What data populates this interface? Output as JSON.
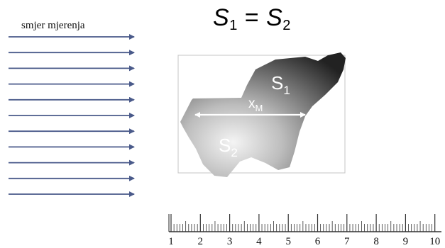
{
  "direction_label": "smjer mjerenja",
  "equation": {
    "lhs": "S",
    "lhs_sub": "1",
    "eq": " = ",
    "rhs": "S",
    "rhs_sub": "2"
  },
  "shape": {
    "region_upper": "S",
    "region_upper_sub": "1",
    "region_lower": "S",
    "region_lower_sub": "2",
    "measure": "x",
    "measure_sub": "M"
  },
  "arrow_count": 11,
  "ruler": {
    "numbers": [
      "1",
      "2",
      "3",
      "4",
      "5",
      "6",
      "7",
      "8",
      "9",
      "10"
    ]
  },
  "colors": {
    "arrow": "#4a5a8a",
    "frame": "#bfbfbf",
    "shape_dark": "#2a2a2a",
    "shape_light": "#f4f4f4"
  }
}
